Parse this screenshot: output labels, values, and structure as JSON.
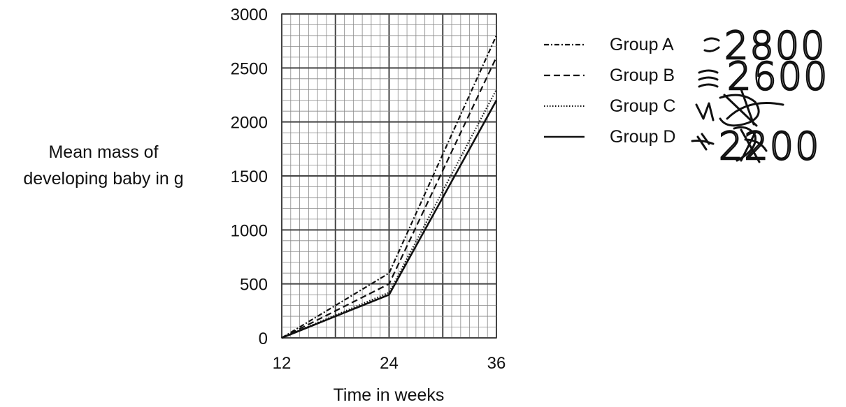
{
  "chart_data": {
    "type": "line",
    "title": "",
    "xlabel": "Time in weeks",
    "ylabel_lines": [
      "Mean mass of",
      "developing baby in g"
    ],
    "x": [
      12,
      24,
      36
    ],
    "xticks": [
      "12",
      "24",
      "36"
    ],
    "yticks": [
      "0",
      "500",
      "1000",
      "1500",
      "2000",
      "2500",
      "3000"
    ],
    "xlim": [
      12,
      36
    ],
    "ylim": [
      0,
      3000
    ],
    "grid": true,
    "legend_position": "right",
    "series": [
      {
        "name": "Group A",
        "values": [
          0,
          600,
          2800
        ],
        "dash": "dashdot"
      },
      {
        "name": "Group B",
        "values": [
          0,
          500,
          2600
        ],
        "dash": "dashed"
      },
      {
        "name": "Group C",
        "values": [
          0,
          420,
          2300
        ],
        "dash": "dotted"
      },
      {
        "name": "Group D",
        "values": [
          0,
          400,
          2200
        ],
        "dash": "solid"
      }
    ],
    "annotations": {
      "handwritten_a": "2800",
      "handwritten_b": "2600",
      "handwritten_d": "2200"
    }
  }
}
